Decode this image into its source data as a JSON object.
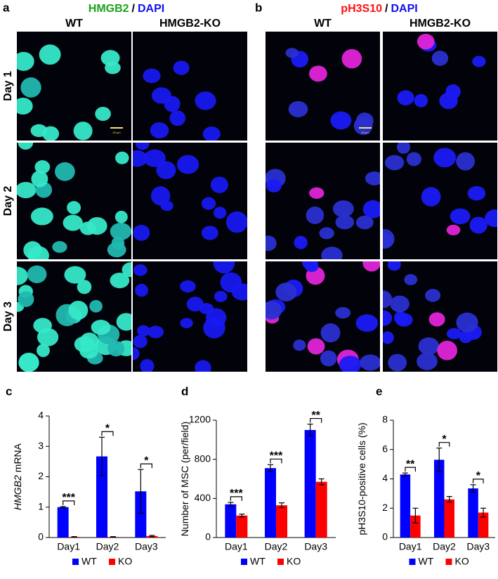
{
  "image_panels": [
    {
      "label": "a",
      "title_stain": "HMGB2",
      "title_sep": "/",
      "title_dapi": "DAPI",
      "columns": [
        "WT",
        "HMGB2-KO"
      ],
      "rows": [
        "Day 1",
        "Day 2",
        "Day 3"
      ],
      "scale_bar": "20 μm"
    },
    {
      "label": "b",
      "title_stain": "pH3S10",
      "title_sep": "/",
      "title_dapi": "DAPI",
      "columns": [
        "WT",
        "HMGB2-KO"
      ],
      "scale_bar": "20 μm"
    }
  ],
  "chart_data": [
    {
      "type": "bar",
      "label": "c",
      "ylabel_italic": "HMGB2",
      "ylabel": "mRNA",
      "categories": [
        "Day1",
        "Day2",
        "Day3"
      ],
      "series": [
        {
          "name": "WT",
          "color": "#0000ff",
          "values": [
            1.0,
            2.67,
            1.52
          ],
          "errors": [
            0.02,
            0.63,
            0.72
          ]
        },
        {
          "name": "KO",
          "color": "#ff0000",
          "values": [
            0.02,
            0.02,
            0.05
          ],
          "errors": [
            0.01,
            0.01,
            0.02
          ]
        }
      ],
      "significance": [
        "***",
        "*",
        "*"
      ],
      "ylim": [
        0,
        4
      ],
      "yticks": [
        0,
        1,
        2,
        3,
        4
      ]
    },
    {
      "type": "bar",
      "label": "d",
      "ylabel": "Number of MSC (per/field)",
      "categories": [
        "Day1",
        "Day2",
        "Day3"
      ],
      "series": [
        {
          "name": "WT",
          "color": "#0000ff",
          "values": [
            340,
            710,
            1100
          ],
          "errors": [
            20,
            35,
            60
          ]
        },
        {
          "name": "KO",
          "color": "#ff0000",
          "values": [
            225,
            330,
            570
          ],
          "errors": [
            15,
            25,
            30
          ]
        }
      ],
      "significance": [
        "***",
        "***",
        "**"
      ],
      "ylim": [
        0,
        1200
      ],
      "yticks": [
        0,
        400,
        800,
        1200
      ]
    },
    {
      "type": "bar",
      "label": "e",
      "ylabel": "pH3S10-positive cells (%)",
      "categories": [
        "Day1",
        "Day2",
        "Day3"
      ],
      "series": [
        {
          "name": "WT",
          "color": "#0000ff",
          "values": [
            4.3,
            5.3,
            3.35
          ],
          "errors": [
            0.1,
            0.8,
            0.25
          ]
        },
        {
          "name": "KO",
          "color": "#ff0000",
          "values": [
            1.5,
            2.6,
            1.7
          ],
          "errors": [
            0.5,
            0.2,
            0.3
          ]
        }
      ],
      "significance": [
        "**",
        "*",
        "*"
      ],
      "ylim": [
        0,
        8
      ],
      "yticks": [
        0,
        2,
        4,
        6,
        8
      ]
    }
  ]
}
